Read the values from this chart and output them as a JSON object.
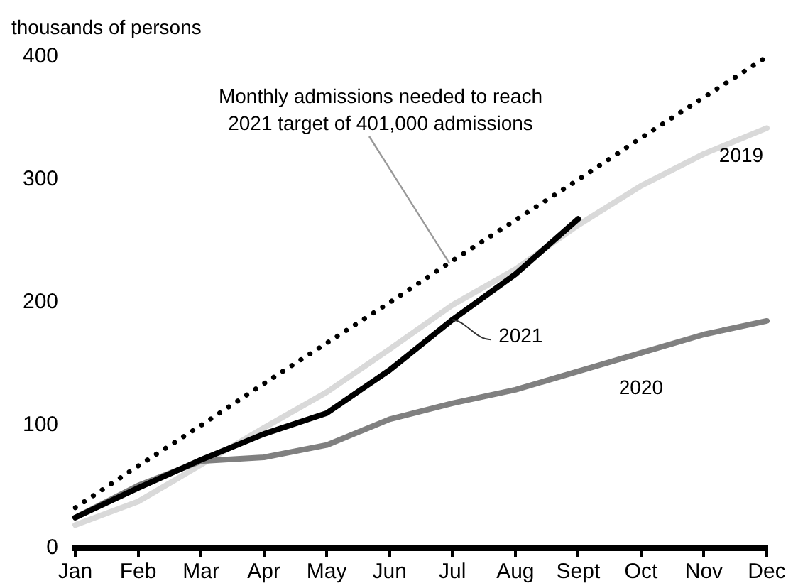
{
  "chart_data": {
    "type": "line",
    "ylabel": "thousands of persons",
    "categories": [
      "Jan",
      "Feb",
      "Mar",
      "Apr",
      "May",
      "Jun",
      "Jul",
      "Aug",
      "Sept",
      "Oct",
      "Nov",
      "Dec"
    ],
    "series": [
      {
        "name": "Monthly admissions needed to reach 2021 target of 401,000 admissions",
        "color": "#000000",
        "line_style": "dotted",
        "values": [
          33,
          67,
          100,
          134,
          167,
          200,
          234,
          267,
          300,
          334,
          367,
          400
        ]
      },
      {
        "name": "2019",
        "color": "#d9d9d9",
        "values": [
          19,
          38,
          68,
          98,
          127,
          162,
          198,
          227,
          263,
          295,
          321,
          342
        ]
      },
      {
        "name": "2020",
        "color": "#808080",
        "values": [
          25,
          51,
          71,
          74,
          84,
          105,
          118,
          129,
          144,
          159,
          174,
          185
        ]
      },
      {
        "name": "2021",
        "color": "#000000",
        "values": [
          25,
          49,
          72,
          93,
          110,
          145,
          186,
          223,
          268,
          null,
          null,
          null
        ]
      }
    ],
    "ylim": [
      0,
      400
    ],
    "yticks": [
      0,
      100,
      200,
      300,
      400
    ],
    "grid": false,
    "legend": false,
    "marker": "none",
    "line_style": "solid"
  }
}
